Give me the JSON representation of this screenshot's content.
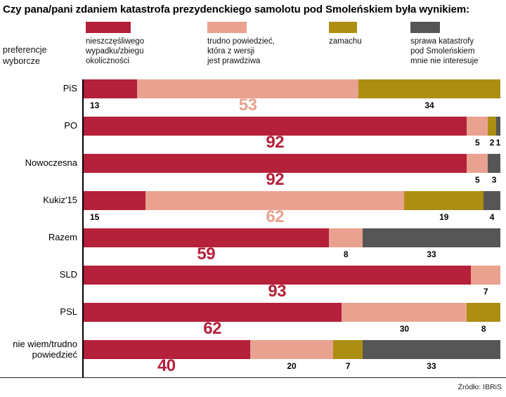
{
  "title": "Czy pana/pani zdaniem katastrofa prezydenckiego samolotu pod Smoleńskiem była wynikiem:",
  "axis_caption": "preferencje\nwyborcze",
  "source": "Źródło: IBRiS",
  "legend": [
    {
      "key": "accident",
      "color": "#b5203a",
      "label": "nieszczęśliwego\nwypadku/zbiegu\nokoliczności"
    },
    {
      "key": "uncertain",
      "color": "#e9a28f",
      "label": "trudno powiedzieć,\nktóra z wersji\njest prawdziwa"
    },
    {
      "key": "attack",
      "color": "#ad8e12",
      "label": "zamachu"
    },
    {
      "key": "not-interested",
      "color": "#565656",
      "label": "sprawa katastrofy\npod Smoleńskiem\nmnie nie interesuje"
    }
  ],
  "chart_data": {
    "type": "bar",
    "orientation": "horizontal",
    "stacked": true,
    "unit": "%",
    "xlim": [
      0,
      100
    ],
    "title": "Czy pana/pani zdaniem katastrofa prezydenckiego samolotu pod Smoleńskiem była wynikiem:",
    "ylabel": "preferencje wyborcze",
    "legend_position": "top",
    "categories": [
      "PiS",
      "PO",
      "Nowoczesna",
      "Kukiz'15",
      "Razem",
      "SLD",
      "PSL",
      "nie wiem/trudno\npowiedzieć"
    ],
    "series": [
      {
        "key": "accident",
        "name": "nieszczęśliwego wypadku/zbiegu okoliczności",
        "color": "#b5203a",
        "values": [
          13,
          92,
          92,
          15,
          59,
          93,
          62,
          40
        ]
      },
      {
        "key": "uncertain",
        "name": "trudno powiedzieć, która z wersji jest prawdziwa",
        "color": "#e9a28f",
        "values": [
          53,
          5,
          5,
          62,
          8,
          7,
          30,
          20
        ]
      },
      {
        "key": "attack",
        "name": "zamachu",
        "color": "#ad8e12",
        "values": [
          34,
          2,
          0,
          19,
          0,
          0,
          8,
          7
        ]
      },
      {
        "key": "not-interested",
        "name": "sprawa katastrofy pod Smoleńskiem mnie nie interesuje",
        "color": "#565656",
        "values": [
          0,
          1,
          3,
          4,
          33,
          0,
          0,
          33
        ]
      }
    ]
  }
}
